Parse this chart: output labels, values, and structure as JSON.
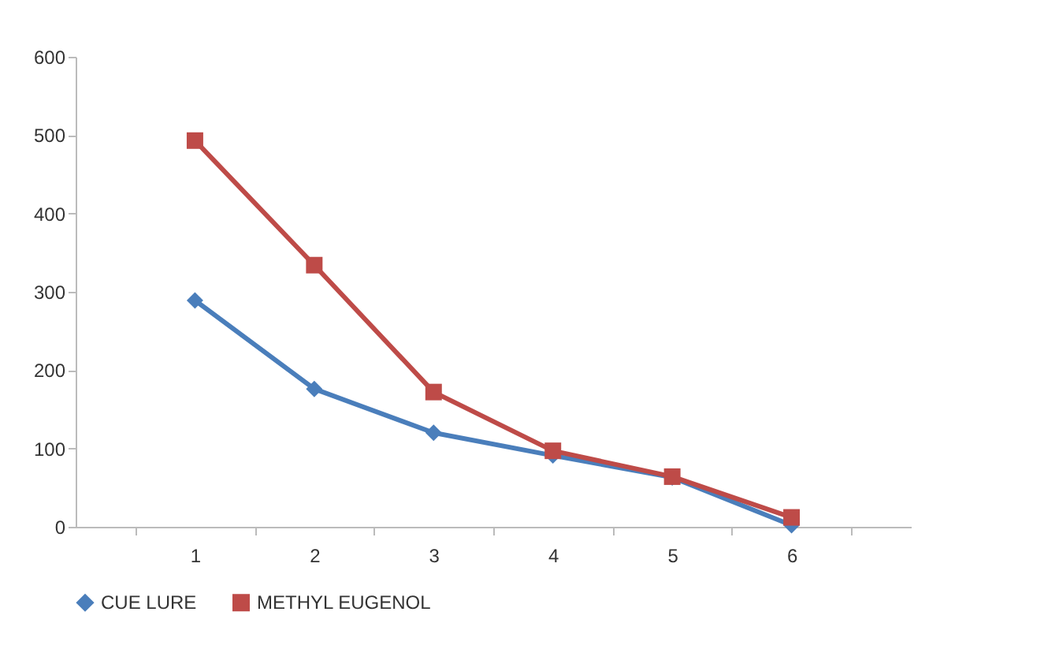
{
  "chart_data": {
    "type": "line",
    "categories": [
      "1",
      "2",
      "3",
      "4",
      "5",
      "6"
    ],
    "series": [
      {
        "name": "CUE LURE",
        "color": "#4a7ebb",
        "marker": "diamond",
        "values": [
          289,
          176,
          120,
          91,
          63,
          2
        ]
      },
      {
        "name": "METHYL EUGENOL",
        "color": "#be4b48",
        "marker": "square",
        "values": [
          493,
          334,
          172,
          97,
          64,
          12
        ]
      }
    ],
    "ylim": [
      0,
      600
    ],
    "yticks": [
      0,
      100,
      200,
      300,
      400,
      500,
      600
    ],
    "grid": false,
    "legend": "bottom"
  }
}
